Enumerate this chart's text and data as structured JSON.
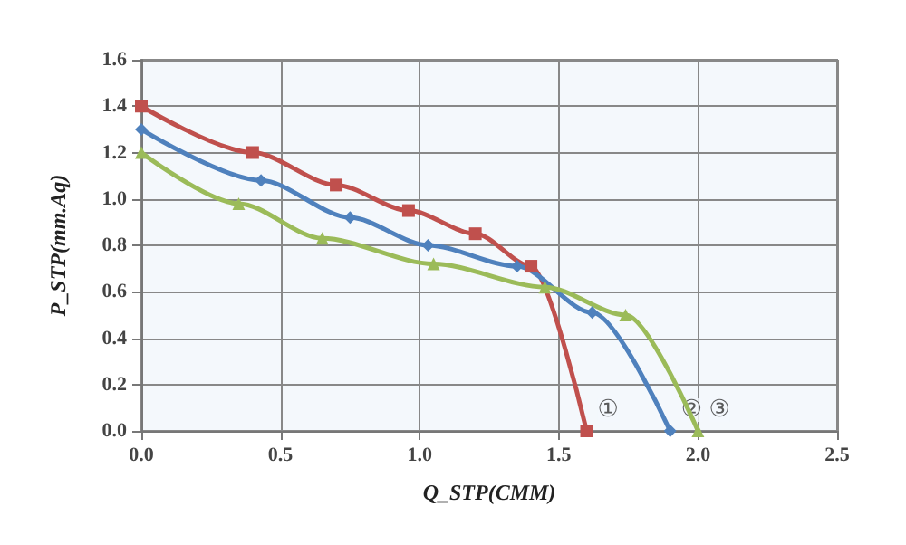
{
  "chart_data": {
    "type": "line",
    "xlabel": "Q_STP(CMM)",
    "ylabel": "P_STP(mm.Aq)",
    "xlim": [
      0,
      2.5
    ],
    "xticks": [
      {
        "value": 0,
        "label": "0.0"
      },
      0.5,
      {
        "value": 1,
        "label": "1.0"
      },
      1.5,
      {
        "value": 2,
        "label": "2.0"
      },
      2.5
    ],
    "ylim": [
      0,
      1.6
    ],
    "yticks": [
      {
        "value": 0,
        "label": "0.0"
      },
      0.2,
      0.4,
      0.6,
      0.8,
      {
        "value": 1,
        "label": "1.0"
      },
      1.2,
      1.4,
      1.6
    ],
    "grid": true,
    "series": [
      {
        "color": "#c0504d",
        "marker": "square",
        "x": [
          0,
          0.4,
          0.7,
          0.96,
          1.2,
          1.4,
          1.6
        ],
        "values": [
          1.4,
          1.2,
          1.06,
          0.95,
          0.85,
          0.71,
          0
        ]
      },
      {
        "color": "#4f81bd",
        "marker": "diamond",
        "x": [
          0,
          0.43,
          0.75,
          1.03,
          1.35,
          1.62,
          1.9
        ],
        "values": [
          1.3,
          1.08,
          0.92,
          0.8,
          0.71,
          0.51,
          0
        ]
      },
      {
        "color": "#9bbb59",
        "marker": "triangle",
        "x": [
          0,
          0.35,
          0.65,
          1.05,
          1.45,
          1.74,
          2.0
        ],
        "values": [
          1.2,
          0.98,
          0.83,
          0.72,
          0.62,
          0.5,
          0
        ]
      }
    ],
    "annotations": [
      {
        "text": "①",
        "x": 1.6,
        "y": 0
      },
      {
        "text": "②",
        "x": 1.9,
        "y": 0
      },
      {
        "text": "③",
        "x": 2.0,
        "y": 0
      }
    ]
  }
}
